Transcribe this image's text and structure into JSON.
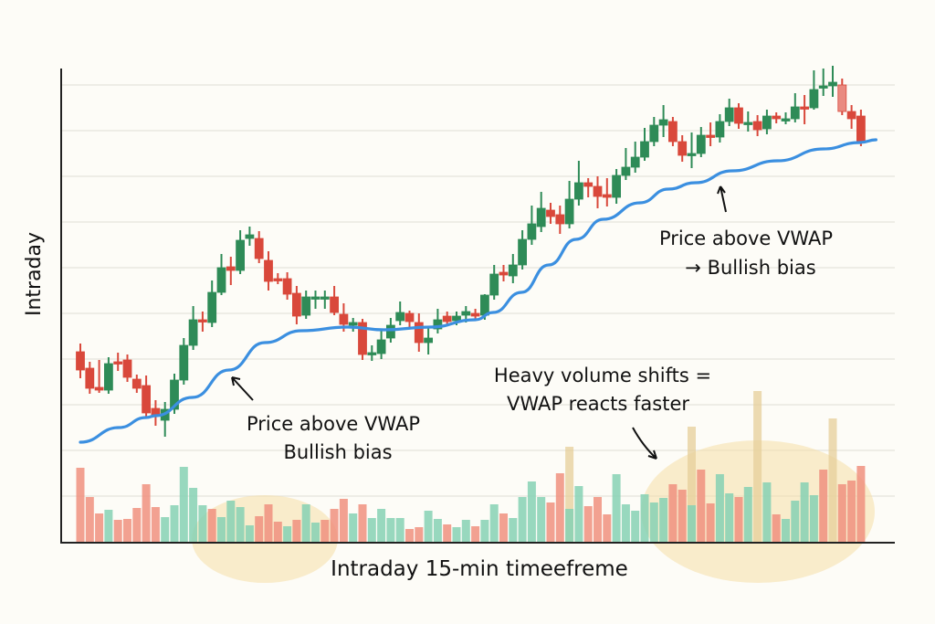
{
  "chart_data": {
    "type": "candlestick",
    "title": "",
    "xlabel": "Intraday 15-min timeefreme",
    "ylabel": "Intraday",
    "grid": true,
    "ylim": [
      0,
      105
    ],
    "colors": {
      "background": "#fdfcf7",
      "bull": "#2e8b57",
      "bear": "#d9483b",
      "bear_light": "#e98a80",
      "vwap": "#3b8fe0",
      "volume_bull": "#86d1b4",
      "volume_bear": "#f0907f",
      "volume_spike": "#e6cf9a",
      "highlight": "#f6dfa8"
    },
    "candles_ohlc": [
      [
        41.6,
        43.4,
        35.8,
        37.6
      ],
      [
        38,
        39.4,
        32.4,
        33.6
      ],
      [
        33.8,
        39.8,
        32.6,
        33.2
      ],
      [
        33.2,
        40.4,
        32.4,
        39
      ],
      [
        39.4,
        41.4,
        37.4,
        39
      ],
      [
        39.8,
        41,
        35,
        36
      ],
      [
        35.6,
        36.6,
        32.6,
        33.6
      ],
      [
        34.2,
        36.4,
        27.4,
        28.2
      ],
      [
        29.2,
        31,
        25.4,
        27.6
      ],
      [
        26.6,
        30.6,
        23,
        29
      ],
      [
        29,
        36.8,
        28,
        35.4
      ],
      [
        35.4,
        44.6,
        34.4,
        43
      ],
      [
        43,
        51.6,
        42,
        48.6
      ],
      [
        48.6,
        50.4,
        46,
        48.2
      ],
      [
        48,
        57.2,
        47,
        54.6
      ],
      [
        54.6,
        63,
        54,
        60
      ],
      [
        60.2,
        62.4,
        56.2,
        59.4
      ],
      [
        59.4,
        68.2,
        58.6,
        66
      ],
      [
        66.4,
        69,
        64.8,
        67.2
      ],
      [
        66.4,
        68,
        61,
        62
      ],
      [
        61.6,
        63.6,
        55,
        57
      ],
      [
        57.6,
        58.8,
        56.4,
        57.2
      ],
      [
        57.6,
        59,
        53,
        54.2
      ],
      [
        54.4,
        56,
        47.6,
        49.4
      ],
      [
        49.6,
        55,
        48.8,
        53.6
      ],
      [
        53.2,
        55,
        51,
        53.6
      ],
      [
        53.2,
        55,
        51,
        53.6
      ],
      [
        53.6,
        56,
        49.6,
        50.2
      ],
      [
        49.8,
        52.2,
        46,
        47.6
      ],
      [
        47.4,
        49,
        46,
        48
      ],
      [
        48,
        48.8,
        39.8,
        41
      ],
      [
        41,
        43,
        39.6,
        41.4
      ],
      [
        41.2,
        46.6,
        40,
        44.2
      ],
      [
        44.6,
        49,
        43.6,
        47.4
      ],
      [
        48.4,
        52.6,
        47.4,
        50.2
      ],
      [
        50,
        50.6,
        47,
        48.2
      ],
      [
        48,
        50,
        41.6,
        43.6
      ],
      [
        43.6,
        47,
        41,
        44.6
      ],
      [
        46.6,
        51,
        45.6,
        48.6
      ],
      [
        49.4,
        50.4,
        47.4,
        48.2
      ],
      [
        48.4,
        50.4,
        47.4,
        49.4
      ],
      [
        49.6,
        51.6,
        48,
        50.4
      ],
      [
        50,
        51,
        48.4,
        49.4
      ],
      [
        49.6,
        54.2,
        48.6,
        54
      ],
      [
        54,
        60.6,
        53,
        58.6
      ],
      [
        59,
        60.6,
        57,
        58.4
      ],
      [
        58.2,
        63,
        56.6,
        60.6
      ],
      [
        60.6,
        68.2,
        59.6,
        66.2
      ],
      [
        66.2,
        73.6,
        65,
        69.6
      ],
      [
        69,
        76.6,
        67.8,
        73
      ],
      [
        72.6,
        74.2,
        69.6,
        71.2
      ],
      [
        71.6,
        73.6,
        67.4,
        69.6
      ],
      [
        69.6,
        79,
        68.6,
        75
      ],
      [
        75,
        83.4,
        73.6,
        78.6
      ],
      [
        78.6,
        79.6,
        75.4,
        77.8
      ],
      [
        77.8,
        80,
        73,
        75.6
      ],
      [
        76,
        79.6,
        73.4,
        75.4
      ],
      [
        75.4,
        81.6,
        74,
        80.2
      ],
      [
        80.2,
        86.2,
        79.2,
        82
      ],
      [
        82,
        87.6,
        80.8,
        84.2
      ],
      [
        84.2,
        90.6,
        83.4,
        87.6
      ],
      [
        87.6,
        93,
        86.6,
        91.2
      ],
      [
        91.2,
        95.6,
        88.6,
        92.4
      ],
      [
        92,
        93,
        86.6,
        87.6
      ],
      [
        87.6,
        89,
        83.2,
        84.6
      ],
      [
        84.8,
        89.6,
        81.8,
        85
      ],
      [
        85,
        90.8,
        84.2,
        89
      ],
      [
        89,
        91.8,
        86.6,
        88.6
      ],
      [
        88.6,
        93.6,
        87.4,
        92
      ],
      [
        92,
        97,
        91,
        95
      ],
      [
        95,
        96,
        90.4,
        91.6
      ],
      [
        91.4,
        94.2,
        89.8,
        91.8
      ],
      [
        92,
        93.4,
        88.8,
        90.2
      ],
      [
        90.4,
        94.6,
        89.2,
        93.2
      ],
      [
        93.2,
        94,
        91.6,
        92.6
      ],
      [
        92.2,
        94,
        91.4,
        92.6
      ],
      [
        92.6,
        98.2,
        91.8,
        95.2
      ],
      [
        95.2,
        97.8,
        91.4,
        94.8
      ],
      [
        95,
        103.2,
        94.6,
        99
      ],
      [
        99.4,
        103.6,
        97.6,
        99.8
      ],
      [
        99.8,
        104.2,
        97.4,
        100.6
      ],
      [
        100,
        101.4,
        93.4,
        94.2
      ],
      [
        94.2,
        95.6,
        90.4,
        92.6
      ],
      [
        93.2,
        94.6,
        86.6,
        87.4
      ]
    ],
    "vwap": [
      [
        1,
        21.8
      ],
      [
        5.1,
        25
      ],
      [
        8,
        27.2
      ],
      [
        9,
        27.6
      ],
      [
        12.9,
        31.6
      ],
      [
        16.8,
        37.6
      ],
      [
        20.6,
        43.6
      ],
      [
        24.5,
        46.2
      ],
      [
        29.4,
        47
      ],
      [
        33.3,
        46.4
      ],
      [
        38.2,
        47
      ],
      [
        43,
        48.6
      ],
      [
        44.9,
        50.2
      ],
      [
        47.9,
        54.6
      ],
      [
        50.8,
        60.6
      ],
      [
        53.7,
        66.2
      ],
      [
        56.6,
        70.6
      ],
      [
        60.5,
        74.2
      ],
      [
        63.5,
        77.2
      ],
      [
        66.4,
        78.6
      ],
      [
        70.3,
        81.2
      ],
      [
        75.1,
        83.4
      ],
      [
        80,
        86
      ],
      [
        83.9,
        87.4
      ],
      [
        85.6,
        88
      ]
    ],
    "volume": [
      810,
      490,
      310,
      350,
      240,
      250,
      370,
      630,
      380,
      270,
      400,
      820,
      590,
      400,
      360,
      270,
      450,
      380,
      180,
      280,
      410,
      220,
      170,
      240,
      410,
      210,
      240,
      360,
      470,
      310,
      410,
      260,
      360,
      260,
      260,
      140,
      160,
      340,
      250,
      190,
      160,
      240,
      170,
      240,
      410,
      310,
      260,
      490,
      660,
      490,
      430,
      750,
      360,
      610,
      390,
      490,
      300,
      740,
      410,
      340,
      520,
      430,
      480,
      630,
      570,
      400,
      790,
      420,
      740,
      530,
      490,
      600,
      0,
      650,
      300,
      250,
      450,
      650,
      510,
      790,
      0,
      630,
      670,
      830
    ],
    "volume_direction": [
      "down",
      "down",
      "down",
      "up",
      "down",
      "down",
      "down",
      "down",
      "down",
      "up",
      "up",
      "up",
      "up",
      "up",
      "down",
      "up",
      "up",
      "up",
      "up",
      "down",
      "down",
      "down",
      "up",
      "down",
      "up",
      "up",
      "down",
      "down",
      "down",
      "up",
      "down",
      "up",
      "up",
      "up",
      "up",
      "down",
      "down",
      "up",
      "up",
      "down",
      "up",
      "up",
      "down",
      "up",
      "up",
      "down",
      "up",
      "up",
      "up",
      "up",
      "down",
      "down",
      "up",
      "up",
      "down",
      "down",
      "down",
      "up",
      "up",
      "up",
      "up",
      "up",
      "up",
      "down",
      "down",
      "up",
      "down",
      "down",
      "up",
      "up",
      "down",
      "up",
      "up",
      "up",
      "down",
      "up",
      "up",
      "up",
      "up",
      "down",
      "up",
      "down",
      "down",
      "down"
    ],
    "volume_spikes": [
      [
        53,
        1040
      ],
      [
        66,
        1260
      ],
      [
        73,
        1650
      ],
      [
        81,
        1350
      ]
    ],
    "annotations": {
      "left_line1": "Price above VWAP",
      "left_line2": "Bullish bias",
      "right_line1": "Price above VWAP",
      "right_line2": "→ Bullish bias",
      "volume_line1": "Heavy volume shifts =",
      "volume_line2": "VWAP reacts faster"
    }
  }
}
